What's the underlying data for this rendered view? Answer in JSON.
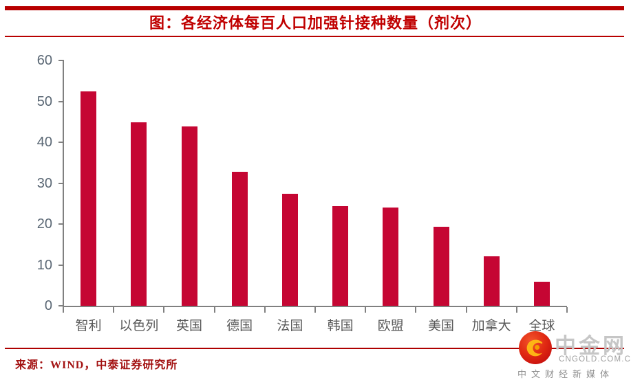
{
  "title": "图：各经济体每百人口加强针接种数量（剂次）",
  "source_note": "来源：WIND，中泰证券研究所",
  "watermark": {
    "name": "中金网",
    "domain": "CNGOLD.COM.CN",
    "tagline": "中文财经新媒体"
  },
  "chart_data": {
    "type": "bar",
    "title": "图：各经济体每百人口加强针接种数量（剂次）",
    "categories": [
      "智利",
      "以色列",
      "英国",
      "德国",
      "法国",
      "韩国",
      "欧盟",
      "美国",
      "加拿大",
      "全球"
    ],
    "values": [
      52.5,
      44.8,
      43.8,
      32.8,
      27.4,
      24.3,
      24.1,
      19.3,
      12.1,
      5.8
    ],
    "xlabel": "",
    "ylabel": "",
    "ylim": [
      0,
      60
    ],
    "yticks": [
      0,
      10,
      20,
      30,
      40,
      50,
      60
    ],
    "grid": false,
    "legend": null,
    "bar_color": "#C50633"
  },
  "colors": {
    "accent_red": "#B80000",
    "title_red": "#C00000",
    "bar_red": "#C50633",
    "source_red": "#A31212",
    "axis_gray": "#808080",
    "y_label_gray": "#5A6774",
    "x_label_gray": "#595959"
  }
}
